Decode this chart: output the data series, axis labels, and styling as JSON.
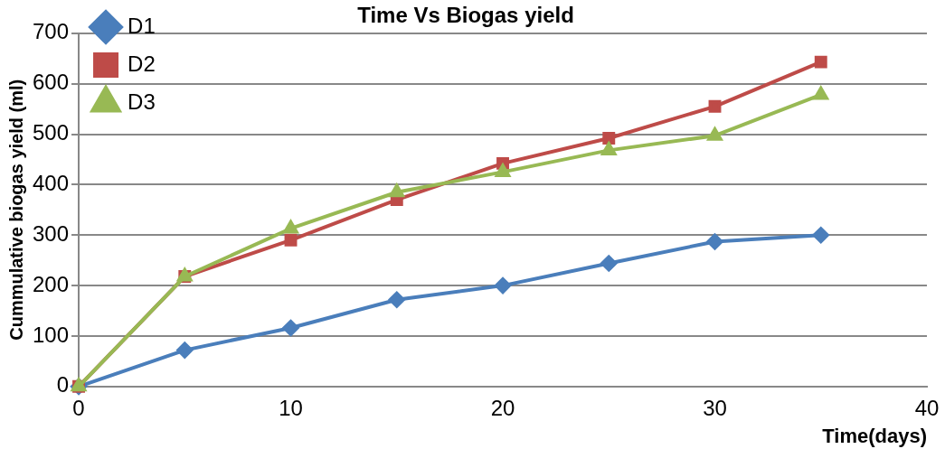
{
  "chart_data": {
    "type": "line",
    "title": "Time Vs Biogas yield",
    "xlabel": "Time(days)",
    "ylabel": "Cummulative biogas yield (ml)",
    "x": [
      0,
      5,
      10,
      15,
      20,
      25,
      30,
      35
    ],
    "series": [
      {
        "name": "D1",
        "color": "#4a7ebb",
        "marker": "diamond",
        "values": [
          0,
          72,
          116,
          172,
          200,
          244,
          287,
          300
        ]
      },
      {
        "name": "D2",
        "color": "#be4b48",
        "marker": "square",
        "values": [
          0,
          218,
          290,
          370,
          442,
          492,
          555,
          643
        ]
      },
      {
        "name": "D3",
        "color": "#98b954",
        "marker": "triangle",
        "values": [
          0,
          218,
          313,
          385,
          425,
          468,
          497,
          578
        ]
      }
    ],
    "xlim": [
      0,
      40
    ],
    "xticks": [
      0,
      10,
      20,
      30,
      40
    ],
    "ylim": [
      0,
      700
    ],
    "yticks": [
      0,
      100,
      200,
      300,
      400,
      500,
      600,
      700
    ],
    "grid": "y",
    "legend": "top left",
    "line_style": "solid"
  }
}
